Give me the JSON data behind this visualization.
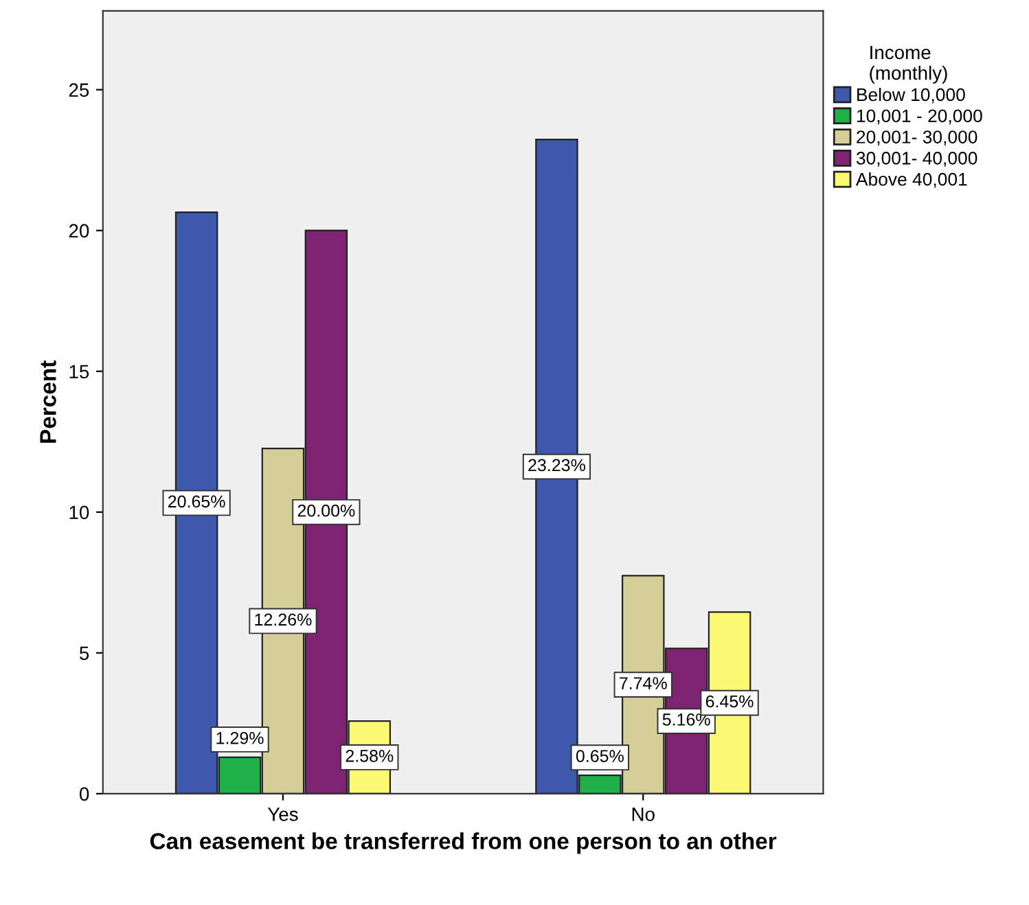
{
  "chart_data": {
    "type": "bar",
    "xlabel": "Can easement be transferred from one person to an other",
    "ylabel": "Percent",
    "legend_title": "Income\n(monthly)",
    "categories": [
      "Yes",
      "No"
    ],
    "series": [
      {
        "name": "Below 10,000",
        "color": "#3e58ac",
        "values": [
          20.65,
          23.23
        ],
        "value_labels": [
          "20.65%",
          "23.23%"
        ]
      },
      {
        "name": "10,001 - 20,000",
        "color": "#1fb04a",
        "values": [
          1.29,
          0.65
        ],
        "value_labels": [
          "1.29%",
          "0.65%"
        ]
      },
      {
        "name": "20,001- 30,000",
        "color": "#d4cf96",
        "values": [
          12.26,
          7.74
        ],
        "value_labels": [
          "12.26%",
          "7.74%"
        ]
      },
      {
        "name": "30,001- 40,000",
        "color": "#7d2372",
        "values": [
          20.0,
          5.16
        ],
        "value_labels": [
          "20.00%",
          "5.16%"
        ]
      },
      {
        "name": "Above 40,001",
        "color": "#fbf871",
        "values": [
          2.58,
          6.45
        ],
        "value_labels": [
          "2.58%",
          "6.45%"
        ]
      }
    ],
    "ylim": [
      0,
      27.8
    ],
    "yticks": [
      0,
      5,
      10,
      15,
      20,
      25
    ],
    "grid": false,
    "legend": "top right"
  }
}
